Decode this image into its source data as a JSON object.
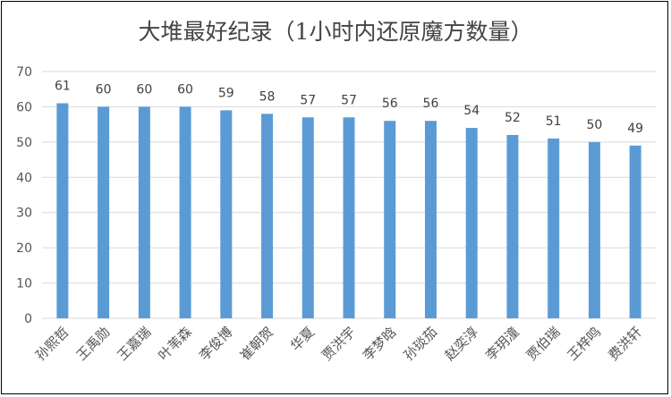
{
  "chart_data": {
    "type": "bar",
    "title": "大堆最好纪录（1小时内还原魔方数量）",
    "categories": [
      "孙熙哲",
      "王禹勋",
      "王嘉瑞",
      "叶苇森",
      "李俊博",
      "崔朝贺",
      "华夏",
      "贾洪宇",
      "李梦晗",
      "孙琰茄",
      "赵奕淳",
      "李玥潼",
      "贾伯瑞",
      "王梓鸣",
      "费洪轩"
    ],
    "values": [
      61,
      60,
      60,
      60,
      59,
      58,
      57,
      57,
      56,
      56,
      54,
      52,
      51,
      50,
      49
    ],
    "ylim": [
      0,
      70
    ],
    "yticks": [
      0,
      10,
      20,
      30,
      40,
      50,
      60,
      70
    ],
    "xlabel": "",
    "ylabel": "",
    "grid": true,
    "legend": "none",
    "bar_color": "#5b9bd5",
    "grid_color": "#d9d9d9"
  }
}
